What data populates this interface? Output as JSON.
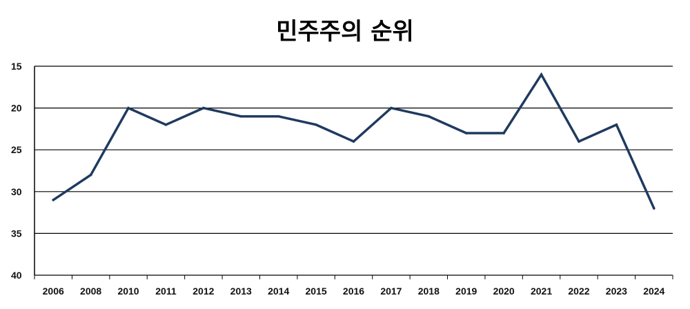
{
  "chart_data": {
    "type": "line",
    "title": "민주주의 순위",
    "xlabel": "",
    "ylabel": "",
    "y_inverted": true,
    "ylim": [
      15,
      40
    ],
    "yticks": [
      15,
      20,
      25,
      30,
      35,
      40
    ],
    "grid": true,
    "legend": "none",
    "categories": [
      "2006",
      "2008",
      "2010",
      "2011",
      "2012",
      "2013",
      "2014",
      "2015",
      "2016",
      "2017",
      "2018",
      "2019",
      "2020",
      "2021",
      "2022",
      "2023",
      "2024"
    ],
    "series": [
      {
        "values": [
          31,
          28,
          20,
          22,
          20,
          21,
          21,
          22,
          24,
          20,
          21,
          23,
          23,
          16,
          24,
          22,
          32
        ],
        "color": "#1f3a5f"
      }
    ]
  }
}
